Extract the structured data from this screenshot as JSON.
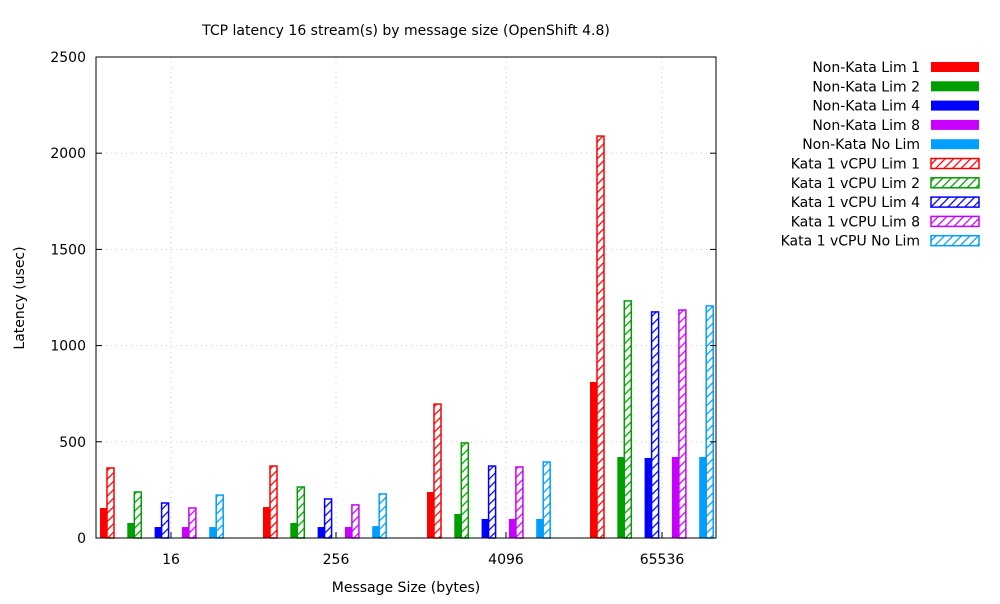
{
  "chart_data": {
    "type": "bar",
    "title": "TCP latency 16 stream(s) by message size (OpenShift 4.8)",
    "xlabel": "Message Size (bytes)",
    "ylabel": "Latency (usec)",
    "ylim": [
      0,
      2500
    ],
    "yticks": [
      0,
      500,
      1000,
      1500,
      2000,
      2500
    ],
    "grid": true,
    "legend_position": "outside-top-right",
    "categories": [
      "16",
      "256",
      "4096",
      "65536"
    ],
    "series": [
      {
        "name": "Non-Kata Lim 1",
        "color": "#ff0000",
        "pattern": "solid",
        "values": [
          156,
          161,
          239,
          811
        ]
      },
      {
        "name": "Kata 1 vCPU Lim 1",
        "color": "#ff0000",
        "pattern": "hatched",
        "values": [
          364,
          374,
          696,
          2089
        ]
      },
      {
        "name": "Non-Kata Lim 2",
        "color": "#009e00",
        "pattern": "solid",
        "values": [
          78,
          78,
          125,
          421
        ]
      },
      {
        "name": "Kata 1 vCPU Lim 2",
        "color": "#009e00",
        "pattern": "hatched",
        "values": [
          239,
          265,
          494,
          1232
        ]
      },
      {
        "name": "Non-Kata Lim 4",
        "color": "#0000ff",
        "pattern": "solid",
        "values": [
          57,
          57,
          99,
          416
        ]
      },
      {
        "name": "Kata 1 vCPU Lim 4",
        "color": "#0000ff",
        "pattern": "hatched",
        "values": [
          182,
          203,
          374,
          1175
        ]
      },
      {
        "name": "Non-Kata Lim 8",
        "color": "#c800ff",
        "pattern": "solid",
        "values": [
          57,
          57,
          99,
          421
        ]
      },
      {
        "name": "Kata 1 vCPU Lim 8",
        "color": "#c800ff",
        "pattern": "hatched",
        "values": [
          156,
          172,
          369,
          1185
        ]
      },
      {
        "name": "Non-Kata No Lim",
        "color": "#009eff",
        "pattern": "solid",
        "values": [
          57,
          62,
          99,
          421
        ]
      },
      {
        "name": "Kata 1 vCPU No Lim",
        "color": "#009eff",
        "pattern": "hatched",
        "values": [
          223,
          229,
          395,
          1206
        ]
      }
    ],
    "legend_order": [
      0,
      2,
      4,
      6,
      8,
      1,
      3,
      5,
      7,
      9
    ]
  }
}
